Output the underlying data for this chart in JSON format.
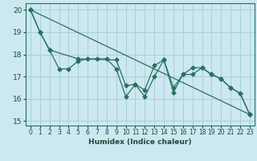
{
  "xlabel": "Humidex (Indice chaleur)",
  "bg_color": "#cce8f0",
  "grid_color": "#aacfdb",
  "line_color": "#2a7060",
  "xlim": [
    -0.5,
    23.5
  ],
  "ylim": [
    14.8,
    20.3
  ],
  "yticks": [
    15,
    16,
    17,
    18,
    19,
    20
  ],
  "xticks": [
    0,
    1,
    2,
    3,
    4,
    5,
    6,
    7,
    8,
    9,
    10,
    11,
    12,
    13,
    14,
    15,
    16,
    17,
    18,
    19,
    20,
    21,
    22,
    23
  ],
  "line1_x": [
    0,
    1,
    2,
    3,
    4,
    5,
    6,
    7,
    8,
    9,
    10,
    11,
    12,
    13,
    14,
    15,
    16,
    17,
    18,
    19,
    20,
    21,
    22,
    23
  ],
  "line1_y": [
    20.0,
    19.0,
    18.2,
    17.35,
    17.35,
    17.7,
    17.8,
    17.8,
    17.8,
    17.35,
    16.1,
    16.65,
    16.1,
    17.0,
    17.75,
    16.3,
    17.1,
    17.1,
    17.4,
    17.1,
    16.9,
    16.5,
    16.25,
    15.3
  ],
  "line2_x": [
    0,
    23
  ],
  "line2_y": [
    20.0,
    15.3
  ],
  "line3_x": [
    0,
    1,
    2,
    5,
    9,
    10,
    11,
    12,
    13,
    14,
    15,
    16,
    17,
    18,
    19,
    20,
    21,
    22,
    23
  ],
  "line3_y": [
    20.0,
    19.0,
    18.2,
    17.8,
    17.75,
    16.6,
    16.65,
    16.4,
    17.5,
    17.75,
    16.5,
    17.1,
    17.4,
    17.4,
    17.1,
    16.9,
    16.5,
    16.25,
    15.3
  ]
}
